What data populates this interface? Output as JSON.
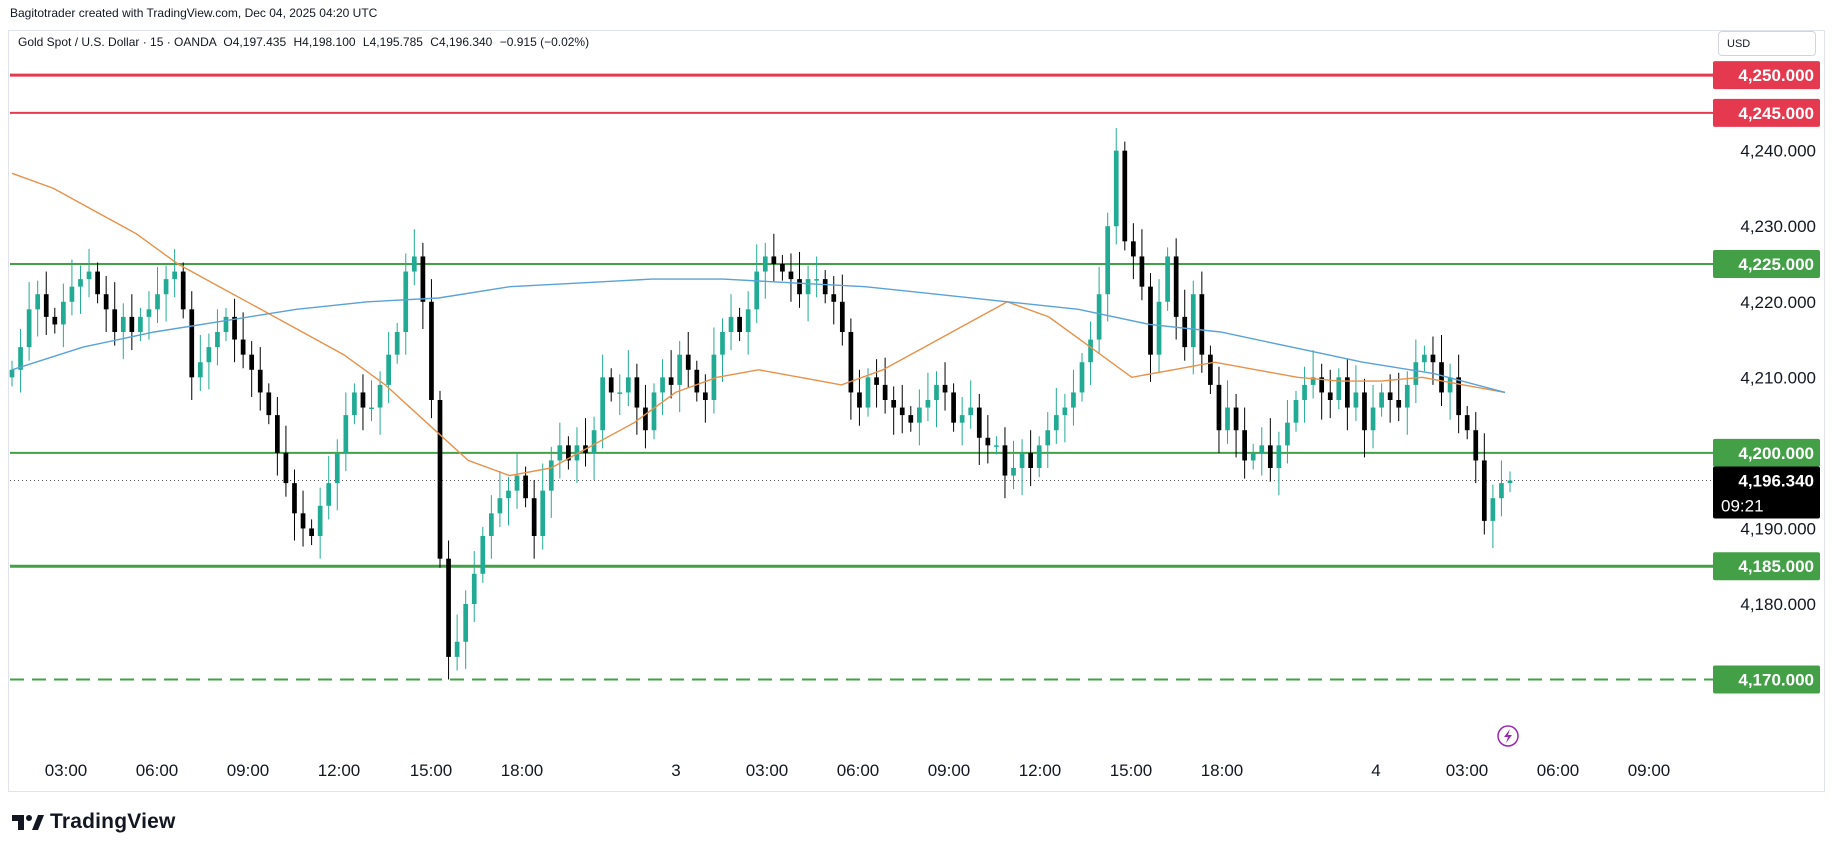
{
  "header": {
    "credit": "Bagitotrader created with TradingView.com, Dec 04, 2025 04:20 UTC",
    "symbol": "Gold Spot / U.S. Dollar · 15 · OANDA",
    "open": "O4,197.435",
    "high": "H4,198.100",
    "low": "L4,195.785",
    "close": "C4,196.340",
    "change": "−0.915 (−0.02%)",
    "currency": "USD"
  },
  "footer": {
    "logo_text": "TradingView"
  },
  "colors": {
    "up": "#22ab94",
    "down": "#000000",
    "resistance": "#e53950",
    "support": "#43a047",
    "ma_fast": "#e8914a",
    "ma_slow": "#5aa2d8",
    "price_tag": "#000000"
  },
  "chart_data": {
    "type": "candlestick",
    "interval": "15",
    "ylim": [
      4162,
      4252
    ],
    "y_ticks": [
      {
        "value": 4240,
        "label": "4,240.000"
      },
      {
        "value": 4230,
        "label": "4,230.000"
      },
      {
        "value": 4220,
        "label": "4,220.000"
      },
      {
        "value": 4210,
        "label": "4,210.000"
      },
      {
        "value": 4190,
        "label": "4,190.000"
      },
      {
        "value": 4180,
        "label": "4,180.000"
      }
    ],
    "x_ticks": [
      "03:00",
      "06:00",
      "09:00",
      "12:00",
      "15:00",
      "18:00",
      "3",
      "03:00",
      "06:00",
      "09:00",
      "12:00",
      "15:00",
      "18:00",
      "4",
      "03:00",
      "06:00",
      "09:00"
    ],
    "levels": [
      {
        "value": 4250,
        "label": "4,250.000",
        "kind": "resistance",
        "style": "solid-thick"
      },
      {
        "value": 4245,
        "label": "4,245.000",
        "kind": "resistance",
        "style": "solid"
      },
      {
        "value": 4225,
        "label": "4,225.000",
        "kind": "support",
        "style": "solid"
      },
      {
        "value": 4200,
        "label": "4,200.000",
        "kind": "support",
        "style": "solid"
      },
      {
        "value": 4185,
        "label": "4,185.000",
        "kind": "support",
        "style": "solid-thick"
      },
      {
        "value": 4170,
        "label": "4,170.000",
        "kind": "support",
        "style": "dashed"
      }
    ],
    "last_price": {
      "value": 4196.34,
      "label": "4,196.340",
      "countdown": "09:21"
    },
    "closes": [
      4211,
      4214,
      4219,
      4221,
      4218,
      4217,
      4220,
      4222,
      4223,
      4224,
      4221,
      4219,
      4216,
      4218,
      4216,
      4218,
      4219,
      4221,
      4223,
      4224,
      4219,
      4210,
      4212,
      4214,
      4216,
      4218,
      4215,
      4213,
      4211,
      4208,
      4205,
      4200,
      4196,
      4192,
      4190,
      4189,
      4193,
      4196,
      4200,
      4205,
      4208,
      4206,
      4206,
      4209,
      4213,
      4216,
      4224,
      4226,
      4220,
      4207,
      4186,
      4173,
      4175,
      4180,
      4184,
      4189,
      4192,
      4194,
      4195,
      4197,
      4194,
      4189,
      4195,
      4199,
      4201,
      4199,
      4201,
      4200,
      4203,
      4210,
      4208,
      4208,
      4210,
      4206,
      4203,
      4208,
      4210,
      4209,
      4213,
      4211,
      4208,
      4207,
      4213,
      4216,
      4218,
      4216,
      4219,
      4224,
      4226,
      4225,
      4224,
      4223,
      4221,
      4223,
      4223,
      4221,
      4220,
      4216,
      4208,
      4206,
      4210,
      4209,
      4207,
      4206,
      4205,
      4204,
      4206,
      4207,
      4209,
      4208,
      4204,
      4205,
      4206,
      4202,
      4201,
      4201,
      4197,
      4198,
      4200,
      4198,
      4201,
      4203,
      4205,
      4206,
      4208,
      4212,
      4215,
      4221,
      4230,
      4240,
      4228,
      4226,
      4222,
      4213,
      4220,
      4226,
      4218,
      4214,
      4221,
      4213,
      4209,
      4203,
      4206,
      4203,
      4199,
      4200,
      4201,
      4198,
      4201,
      4204,
      4207,
      4209,
      4210,
      4208,
      4207,
      4210,
      4206,
      4208,
      4203,
      4206,
      4208,
      4207,
      4206,
      4209,
      4212,
      4213,
      4212,
      4208,
      4210,
      4205,
      4203,
      4199,
      4191,
      4194,
      4196,
      4196.34
    ],
    "ma_fast": [
      4237,
      4235,
      4232,
      4229,
      4225,
      4222,
      4219,
      4216,
      4213,
      4209,
      4204,
      4199,
      4197,
      4198,
      4201,
      4204,
      4208,
      4210,
      4211,
      4210,
      4209,
      4211,
      4214,
      4217,
      4220,
      4218,
      4214,
      4210,
      4211,
      4212,
      4211,
      4210,
      4209.5,
      4209.5,
      4210,
      4209,
      4208
    ],
    "ma_slow": [
      4211,
      4214,
      4216,
      4217.5,
      4219,
      4220,
      4220.5,
      4222,
      4222.5,
      4223,
      4223,
      4222.5,
      4222,
      4221,
      4220,
      4219,
      4217,
      4216,
      4214,
      4212,
      4210.5,
      4208
    ]
  }
}
